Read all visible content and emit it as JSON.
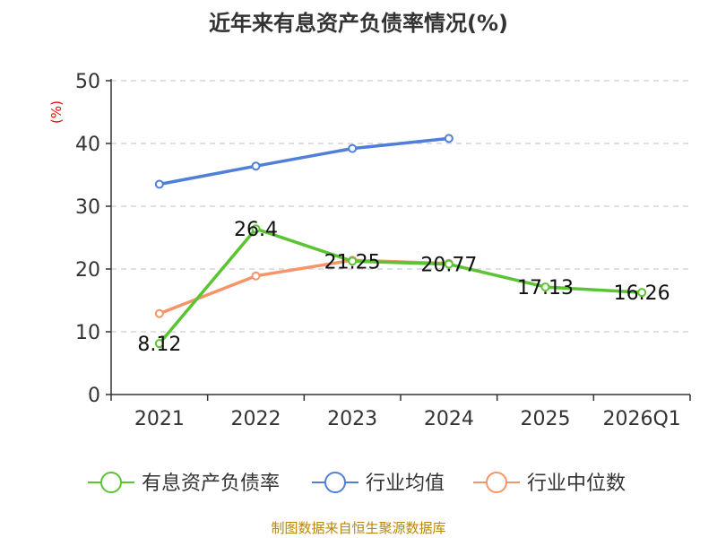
{
  "chart_data": {
    "type": "line",
    "title": "近年来有息资产负债率情况(%)",
    "ylabel": "(%)",
    "xlabel": "",
    "categories": [
      "2021",
      "2022",
      "2023",
      "2024",
      "2025",
      "2026Q1"
    ],
    "ylim": [
      0,
      50
    ],
    "yticks": [
      0,
      10,
      20,
      30,
      40,
      50
    ],
    "grid": true,
    "legend_position": "bottom",
    "series": [
      {
        "name": "有息资产负债率",
        "color": "#5ac433",
        "values": [
          8.12,
          26.4,
          21.25,
          20.77,
          17.13,
          16.26
        ],
        "labels": [
          "8.12",
          "26.4",
          "21.25",
          "20.77",
          "17.13",
          "16.26"
        ]
      },
      {
        "name": "行业均值",
        "color": "#4f7fd6",
        "values": [
          33.5,
          36.4,
          39.2,
          40.8,
          null,
          null
        ]
      },
      {
        "name": "行业中位数",
        "color": "#f6946a",
        "values": [
          12.9,
          18.9,
          21.4,
          20.9,
          null,
          null
        ]
      }
    ]
  },
  "source": "制图数据来自恒生聚源数据库"
}
